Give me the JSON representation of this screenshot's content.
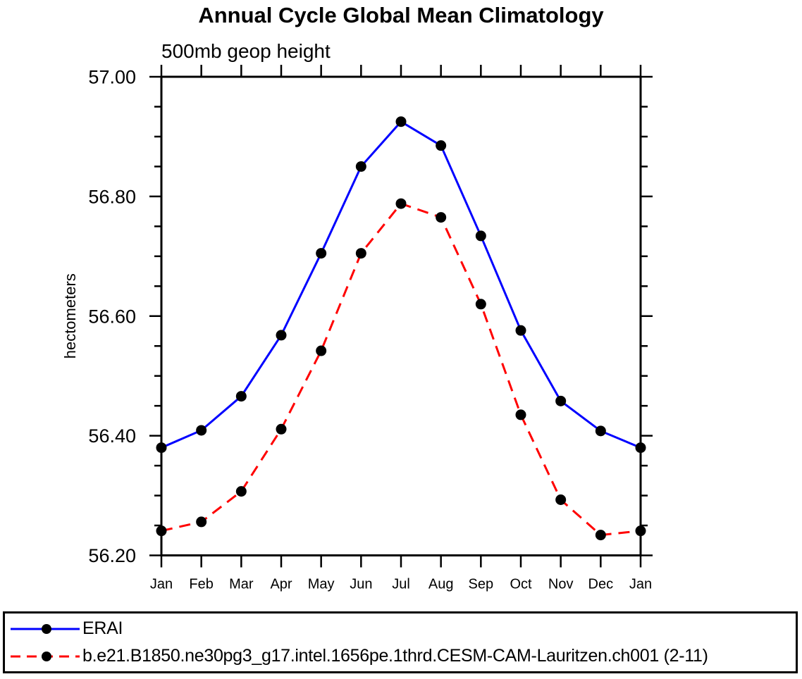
{
  "chart": {
    "title": "Annual Cycle Global Mean Climatology",
    "subtitle": "500mb geop height"
  },
  "chart_data": {
    "type": "line",
    "categories": [
      "Jan",
      "Feb",
      "Mar",
      "Apr",
      "May",
      "Jun",
      "Jul",
      "Aug",
      "Sep",
      "Oct",
      "Nov",
      "Dec",
      "Jan"
    ],
    "xlabel": "",
    "ylabel": "hectometers",
    "ylim": [
      56.2,
      57.0
    ],
    "ytick_major_step": 0.2,
    "ytick_minor_step": 0.05,
    "ytick_labels": [
      "57.00",
      "56.80",
      "56.60",
      "56.40",
      "56.20"
    ],
    "grid": false,
    "legend_position": "bottom",
    "series": [
      {
        "name": "ERAI",
        "color": "#0000ff",
        "line_style": "solid",
        "marker": "filled-circle",
        "marker_color": "#000000",
        "values": [
          56.38,
          56.409,
          56.466,
          56.568,
          56.705,
          56.85,
          56.925,
          56.885,
          56.734,
          56.576,
          56.458,
          56.408,
          56.38
        ]
      },
      {
        "name": "b.e21.B1850.ne30pg3_g17.intel.1656pe.1thrd.CESM-CAM-Lauritzen.ch001 (2-11)",
        "color": "#ff0000",
        "line_style": "dashed",
        "marker": "filled-circle",
        "marker_color": "#000000",
        "values": [
          56.241,
          56.256,
          56.307,
          56.411,
          56.542,
          56.705,
          56.788,
          56.765,
          56.62,
          56.435,
          56.293,
          56.234,
          56.241
        ]
      }
    ]
  },
  "colors": {
    "background": "#ffffff",
    "axis": "#000000",
    "series_erai": "#0000ff",
    "series_model": "#ff0000",
    "marker": "#000000"
  }
}
